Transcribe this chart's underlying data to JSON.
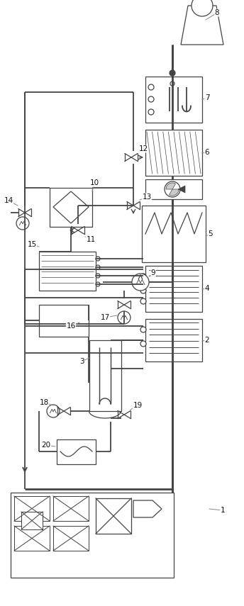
{
  "fig_width": 3.44,
  "fig_height": 8.55,
  "dpi": 100,
  "lc": "#444444",
  "lw_thick": 2.0,
  "lw_med": 1.3,
  "lw_thin": 0.9
}
